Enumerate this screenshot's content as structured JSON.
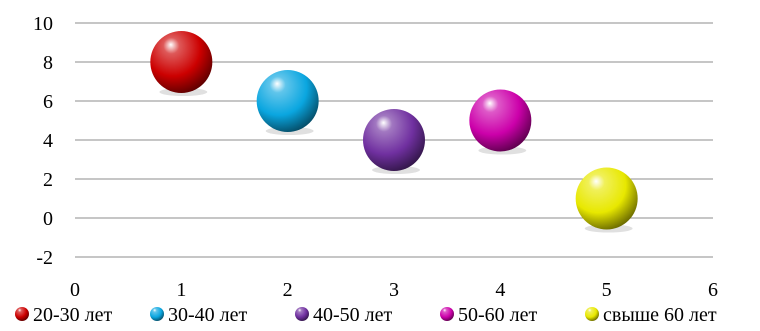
{
  "chart_data": {
    "type": "scatter",
    "title": "",
    "xlabel": "",
    "ylabel": "",
    "xlim": [
      0,
      6
    ],
    "ylim": [
      -2,
      10
    ],
    "x_ticks": [
      0,
      1,
      2,
      3,
      4,
      5,
      6
    ],
    "y_ticks": [
      -2,
      0,
      2,
      4,
      6,
      8,
      10
    ],
    "grid": "horizontal",
    "legend_position": "bottom",
    "series": [
      {
        "name": "20-30 лет",
        "x": 1,
        "y": 8,
        "color": "#cc0000"
      },
      {
        "name": "30-40 лет",
        "x": 2,
        "y": 6,
        "color": "#0aa6e0"
      },
      {
        "name": "40-50 лет",
        "x": 3,
        "y": 4,
        "color": "#7030a0"
      },
      {
        "name": "50-60 лет",
        "x": 4,
        "y": 5,
        "color": "#cc00aa"
      },
      {
        "name": "свыше 60 лет",
        "x": 5,
        "y": 1,
        "color": "#e8e800"
      }
    ]
  }
}
